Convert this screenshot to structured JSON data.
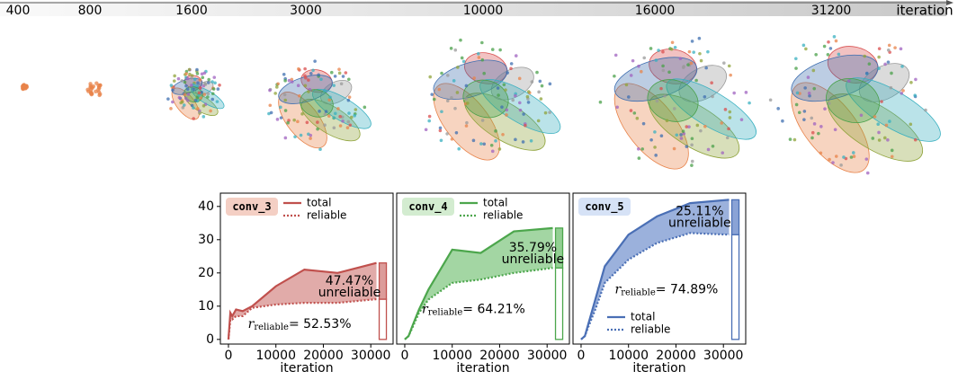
{
  "timeline": {
    "labels": [
      "400",
      "800",
      "1600",
      "3000",
      "10000",
      "16000",
      "31200"
    ],
    "axis_label": "iteration"
  },
  "chart_data": [
    {
      "type": "area",
      "title": "conv_3",
      "x_label": "iteration",
      "color": "#c0504d",
      "fill": "#dc9c9a",
      "badge_color": "#f4cfc4",
      "text_color": "#9c4a22",
      "x": [
        0,
        400,
        800,
        1600,
        3000,
        5000,
        10000,
        16000,
        23000,
        31200
      ],
      "series": [
        {
          "name": "total",
          "style": "solid",
          "values": [
            0,
            8,
            7,
            9,
            8.5,
            10,
            16,
            21,
            20,
            23
          ]
        },
        {
          "name": "reliable",
          "style": "dotted",
          "values": [
            0,
            6,
            6,
            7,
            7,
            9.5,
            10.5,
            11,
            11,
            12.1
          ]
        }
      ],
      "annotations": {
        "gap": "47.47%",
        "gap_label": "unreliable",
        "symbol": "r",
        "subscript": "reliable",
        "ratio": "= 52.53%"
      },
      "legend": "upper center",
      "xlim": [
        -1700,
        34700
      ],
      "ylim": [
        -1.4,
        44
      ],
      "xticks": [
        0,
        10000,
        20000,
        30000
      ],
      "yticks": [
        0,
        10,
        20,
        30,
        40
      ]
    },
    {
      "type": "area",
      "title": "conv_4",
      "x_label": "iteration",
      "color": "#4ca64c",
      "fill": "#93cf93",
      "badge_color": "#d3ecd0",
      "text_color": "#3d6b25",
      "x": [
        0,
        400,
        800,
        1600,
        3000,
        5000,
        10000,
        16000,
        23000,
        31200
      ],
      "series": [
        {
          "name": "total",
          "style": "solid",
          "values": [
            0,
            0.5,
            1,
            4,
            9,
            15,
            27,
            26,
            32.5,
            33.5
          ]
        },
        {
          "name": "reliable",
          "style": "dotted",
          "values": [
            0,
            0.5,
            1,
            3.5,
            8,
            12,
            17,
            18,
            20,
            21.5
          ]
        }
      ],
      "annotations": {
        "gap": "35.79%",
        "gap_label": "unreliable",
        "symbol": "r",
        "subscript": "reliable",
        "ratio": "= 64.21%"
      },
      "legend": "upper center",
      "xlim": [
        -1700,
        34700
      ],
      "ylim": [
        -1.4,
        44
      ],
      "xticks": [
        0,
        10000,
        20000,
        30000
      ]
    },
    {
      "type": "area",
      "title": "conv_5",
      "x_label": "iteration",
      "color": "#4a6fb5",
      "fill": "#8aa3d6",
      "badge_color": "#d6e2f6",
      "text_color": "#2e4f7f",
      "x": [
        0,
        400,
        800,
        1600,
        3000,
        5000,
        10000,
        16000,
        23000,
        31200
      ],
      "series": [
        {
          "name": "total",
          "style": "solid",
          "values": [
            0,
            0.5,
            1,
            5,
            12,
            22,
            31.5,
            37,
            41,
            42
          ]
        },
        {
          "name": "reliable",
          "style": "dotted",
          "values": [
            0,
            0.5,
            1,
            4,
            9,
            17,
            24,
            29,
            32,
            31.5
          ]
        }
      ],
      "annotations": {
        "gap": "25.11%",
        "gap_label": "unreliable",
        "symbol": "r",
        "subscript": "reliable",
        "ratio": "= 74.89%"
      },
      "legend": "lower left",
      "xlim": [
        -1700,
        34700
      ],
      "ylim": [
        -1.4,
        44
      ],
      "xticks": [
        0,
        10000,
        20000,
        30000
      ]
    }
  ]
}
